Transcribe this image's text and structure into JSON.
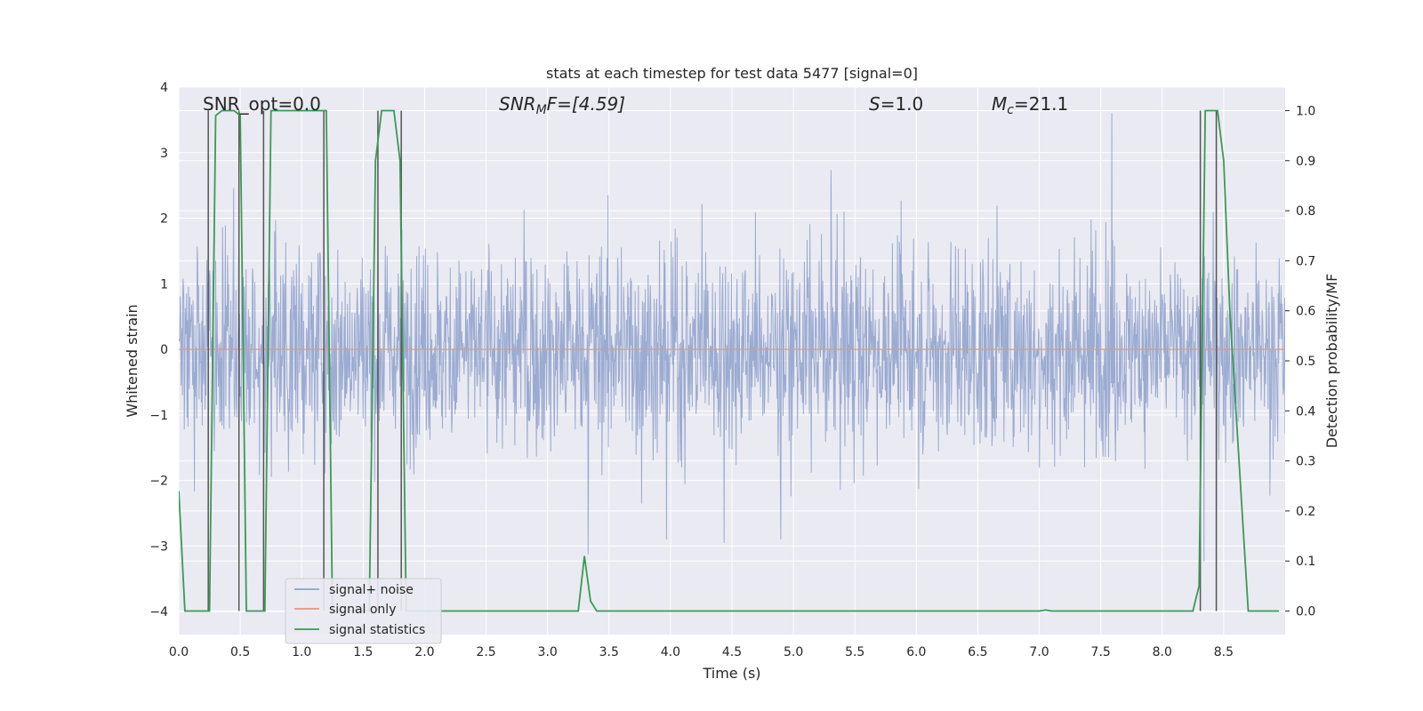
{
  "chart_data": {
    "type": "line",
    "title": "stats at each timestep for test data 5477 [signal=0]",
    "xlabel": "Time (s)",
    "ylabel": "Whitened strain",
    "y2label": "Detection probability/MF",
    "xlim": [
      0,
      9.0
    ],
    "ylim": [
      -4.35,
      4.0
    ],
    "y2lim": [
      -0.047,
      1.047
    ],
    "xticks": [
      "0.0",
      "0.5",
      "1.0",
      "1.5",
      "2.0",
      "2.5",
      "3.0",
      "3.5",
      "4.0",
      "4.5",
      "5.0",
      "5.5",
      "6.0",
      "6.5",
      "7.0",
      "7.5",
      "8.0",
      "8.5"
    ],
    "yticks": [
      "4",
      "3",
      "2",
      "1",
      "0",
      "−1",
      "−2",
      "−3",
      "−4"
    ],
    "y2ticks": [
      "1.0",
      "0.9",
      "0.8",
      "0.7",
      "0.6",
      "0.5",
      "0.4",
      "0.3",
      "0.2",
      "0.1",
      "0.0"
    ],
    "grid": true,
    "legend_position": "lower-left",
    "annotations": {
      "snr_opt": "SNR_opt=0.0",
      "snr_mf_base": "SNR",
      "snr_mf_sub": "M",
      "snr_mf_rest": "F=[4.59]",
      "s_var": "S",
      "s_value": "=1.0",
      "mc_var": "M",
      "mc_sub": "c",
      "mc_value": "=21.1"
    },
    "series": [
      {
        "name": "signal+ noise",
        "color": "#8da0cb",
        "description": "whitened noisy strain, amplitude mostly within ±2 with spikes to ±3.5"
      },
      {
        "name": "signal only",
        "color": "#e9967a",
        "values_constant": 0
      },
      {
        "name": "signal statistics",
        "color": "#3a9a55",
        "axis": "right",
        "x": [
          0.0,
          0.05,
          0.1,
          0.15,
          0.2,
          0.25,
          0.3,
          0.35,
          0.4,
          0.45,
          0.5,
          0.55,
          0.6,
          0.65,
          0.7,
          0.75,
          0.8,
          0.85,
          0.9,
          0.95,
          1.0,
          1.05,
          1.1,
          1.15,
          1.2,
          1.25,
          1.3,
          1.35,
          1.4,
          1.45,
          1.5,
          1.55,
          1.6,
          1.65,
          1.7,
          1.75,
          1.8,
          1.85,
          1.9,
          1.95,
          2.0,
          3.2,
          3.25,
          3.3,
          3.35,
          3.4,
          3.45,
          7.0,
          7.05,
          7.1,
          7.15,
          8.2,
          8.25,
          8.3,
          8.35,
          8.4,
          8.45,
          8.5,
          8.55,
          8.6,
          8.65,
          8.7,
          8.75,
          8.8,
          8.85,
          8.9,
          8.95
        ],
        "values": [
          0.24,
          0.0,
          0.0,
          0.0,
          0.0,
          0.0,
          0.99,
          1.0,
          1.0,
          1.0,
          0.99,
          0.0,
          0.0,
          0.0,
          0.0,
          1.0,
          1.0,
          1.0,
          1.0,
          1.0,
          1.0,
          1.0,
          1.0,
          1.0,
          1.0,
          0.0,
          0.0,
          0.0,
          0.0,
          0.0,
          0.0,
          0.0,
          0.9,
          1.0,
          1.0,
          1.0,
          0.9,
          0.0,
          0.0,
          0.0,
          0.0,
          0.0,
          0.0,
          0.11,
          0.02,
          0.0,
          0.0,
          0.0,
          0.002,
          0.0,
          0.0,
          0.0,
          0.0,
          0.05,
          1.0,
          1.0,
          1.0,
          0.9,
          0.6,
          0.4,
          0.2,
          0.0,
          0.0,
          0.0,
          0.0,
          0.0,
          0.0
        ]
      }
    ],
    "vertical_markers_x": [
      0.24,
      0.49,
      0.69,
      1.18,
      1.62,
      1.81,
      8.31,
      8.44
    ]
  }
}
